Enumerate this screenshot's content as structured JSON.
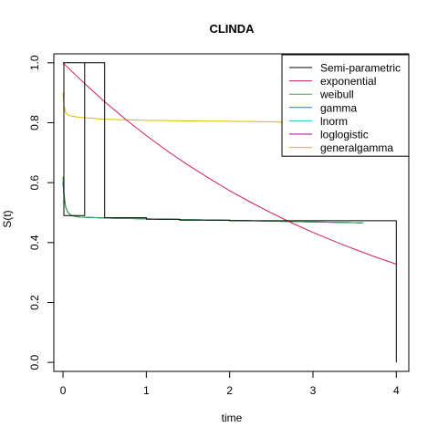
{
  "chart_data": {
    "type": "line",
    "title": "CLINDA",
    "xlabel": "time",
    "ylabel": "S(t)",
    "xlim": [
      -0.11,
      4.15
    ],
    "ylim": [
      -0.03,
      1.03
    ],
    "x_ticks": [
      0,
      1,
      2,
      3,
      4
    ],
    "x_tick_labels": [
      "0",
      "1",
      "2",
      "3",
      "4"
    ],
    "y_ticks": [
      0.0,
      0.2,
      0.4,
      0.6,
      0.8,
      1.0
    ],
    "y_tick_labels": [
      "0.0",
      "0.2",
      "0.4",
      "0.6",
      "0.8",
      "1.0"
    ],
    "grid": false,
    "legend_position": "top-right",
    "series": [
      {
        "name": "Semi-parametric",
        "color": "#000000",
        "step": true,
        "x": [
          0,
          0.26,
          0.26,
          0.01,
          0.01,
          0.5,
          0.5,
          1.0,
          1.0,
          1.4,
          1.4,
          2.0,
          2.0,
          4.0,
          4.0,
          4.0
        ],
        "y": [
          1.0,
          1.0,
          0.49,
          0.49,
          1.0,
          1.0,
          0.483,
          0.483,
          0.478,
          0.478,
          0.475,
          0.475,
          0.473,
          0.473,
          0.0,
          0.0
        ]
      },
      {
        "name": "exponential",
        "color": "#cc2255",
        "step": false,
        "x": [
          0,
          0.25,
          0.5,
          0.75,
          1.0,
          1.25,
          1.5,
          1.75,
          2.0,
          2.25,
          2.5,
          2.75,
          3.0,
          3.25,
          3.5,
          3.75,
          4.0
        ],
        "y": [
          1.0,
          0.933,
          0.87,
          0.812,
          0.757,
          0.706,
          0.659,
          0.615,
          0.573,
          0.535,
          0.499,
          0.465,
          0.434,
          0.405,
          0.378,
          0.352,
          0.328
        ]
      },
      {
        "name": "weibull",
        "color": "#33aa33",
        "step": false,
        "x": [
          0.0,
          0.01,
          0.03,
          0.06,
          0.1,
          0.2,
          0.5,
          1.0,
          2.0,
          3.0,
          3.6
        ],
        "y": [
          0.62,
          0.57,
          0.52,
          0.5,
          0.49,
          0.485,
          0.482,
          0.479,
          0.474,
          0.469,
          0.466
        ]
      },
      {
        "name": "gamma",
        "color": "#2277dd",
        "step": false,
        "x": [
          0.0,
          0.01,
          0.03,
          0.06,
          0.1,
          0.2,
          0.5,
          1.0,
          2.0,
          3.0,
          3.6
        ],
        "y": [
          0.6,
          0.56,
          0.52,
          0.5,
          0.49,
          0.485,
          0.482,
          0.479,
          0.474,
          0.469,
          0.466
        ]
      },
      {
        "name": "lnorm",
        "color": "#22bbcc",
        "step": false,
        "x": [
          0.0,
          0.01,
          0.03,
          0.06,
          0.1,
          0.2,
          0.5,
          1.0,
          2.0,
          3.0,
          3.6
        ],
        "y": [
          0.61,
          0.57,
          0.52,
          0.5,
          0.49,
          0.485,
          0.482,
          0.479,
          0.474,
          0.469,
          0.466
        ]
      },
      {
        "name": "loglogistic",
        "color": "#aa00aa",
        "step": false,
        "x": [
          0.0,
          0.01,
          0.03,
          0.06,
          0.1,
          0.2,
          0.5,
          1.0,
          2.0,
          3.0,
          3.6
        ],
        "y": [
          0.6,
          0.56,
          0.52,
          0.5,
          0.49,
          0.485,
          0.482,
          0.479,
          0.474,
          0.469,
          0.466
        ]
      },
      {
        "name": "generalgamma",
        "color": "#ddbb00",
        "step": false,
        "x": [
          0.0,
          0.01,
          0.03,
          0.06,
          0.1,
          0.2,
          0.5,
          1.0,
          1.5,
          2.0,
          2.5,
          2.9
        ],
        "y": [
          0.9,
          0.86,
          0.835,
          0.826,
          0.822,
          0.818,
          0.812,
          0.808,
          0.806,
          0.805,
          0.803,
          0.8
        ]
      }
    ]
  }
}
